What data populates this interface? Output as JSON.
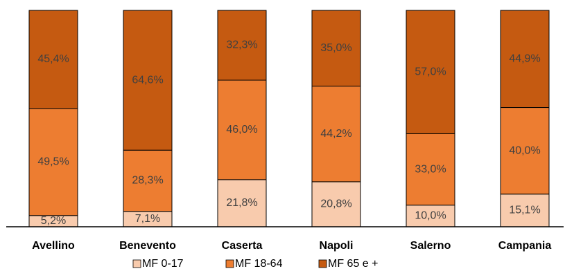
{
  "chart_data": {
    "type": "stacked_bar",
    "categories": [
      "Avellino",
      "Benevento",
      "Caserta",
      "Napoli",
      "Salerno",
      "Campania"
    ],
    "series": [
      {
        "name": "MF 0-17",
        "color": "#f8cbad",
        "values": [
          5.2,
          7.1,
          21.8,
          20.8,
          10.0,
          15.1
        ],
        "value_labels": [
          "5,2%",
          "7,1%",
          "21,8%",
          "20,8%",
          "10,0%",
          "15,1%"
        ]
      },
      {
        "name": "MF 18-64",
        "color": "#ed7d31",
        "values": [
          49.5,
          28.3,
          46.0,
          44.2,
          33.0,
          40.0
        ],
        "value_labels": [
          "49,5%",
          "28,3%",
          "46,0%",
          "44,2%",
          "33,0%",
          "40,0%"
        ]
      },
      {
        "name": "MF 65 e +",
        "color": "#c55a11",
        "values": [
          45.4,
          64.6,
          32.3,
          35.0,
          57.0,
          44.9
        ],
        "value_labels": [
          "45,4%",
          "64,6%",
          "32,3%",
          "35,0%",
          "57,0%",
          "44,9%"
        ]
      }
    ],
    "legend": "bottom"
  }
}
